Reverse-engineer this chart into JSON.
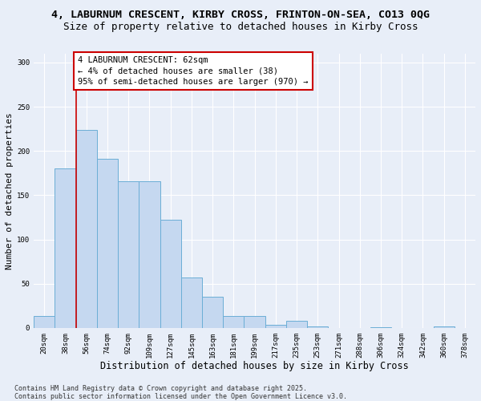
{
  "title_line1": "4, LABURNUM CRESCENT, KIRBY CROSS, FRINTON-ON-SEA, CO13 0QG",
  "title_line2": "Size of property relative to detached houses in Kirby Cross",
  "xlabel": "Distribution of detached houses by size in Kirby Cross",
  "ylabel": "Number of detached properties",
  "categories": [
    "20sqm",
    "38sqm",
    "56sqm",
    "74sqm",
    "92sqm",
    "109sqm",
    "127sqm",
    "145sqm",
    "163sqm",
    "181sqm",
    "199sqm",
    "217sqm",
    "235sqm",
    "253sqm",
    "271sqm",
    "288sqm",
    "306sqm",
    "324sqm",
    "342sqm",
    "360sqm",
    "378sqm"
  ],
  "values": [
    13,
    180,
    224,
    191,
    166,
    166,
    122,
    57,
    35,
    13,
    13,
    3,
    8,
    2,
    0,
    0,
    1,
    0,
    0,
    2,
    0
  ],
  "bar_color": "#c5d8f0",
  "bar_edge_color": "#6baed6",
  "vline_x": 1.5,
  "vline_color": "#cc0000",
  "annotation_title": "4 LABURNUM CRESCENT: 62sqm",
  "annotation_line2": "← 4% of detached houses are smaller (38)",
  "annotation_line3": "95% of semi-detached houses are larger (970) →",
  "annotation_box_color": "#ffffff",
  "annotation_box_edge": "#cc0000",
  "ylim": [
    0,
    310
  ],
  "yticks": [
    0,
    50,
    100,
    150,
    200,
    250,
    300
  ],
  "footer_line1": "Contains HM Land Registry data © Crown copyright and database right 2025.",
  "footer_line2": "Contains public sector information licensed under the Open Government Licence v3.0.",
  "bg_color": "#e8eef8",
  "title_fontsize": 9.5,
  "subtitle_fontsize": 9,
  "tick_fontsize": 6.5,
  "xlabel_fontsize": 8.5,
  "ylabel_fontsize": 8,
  "footer_fontsize": 6,
  "ann_fontsize": 7.5
}
